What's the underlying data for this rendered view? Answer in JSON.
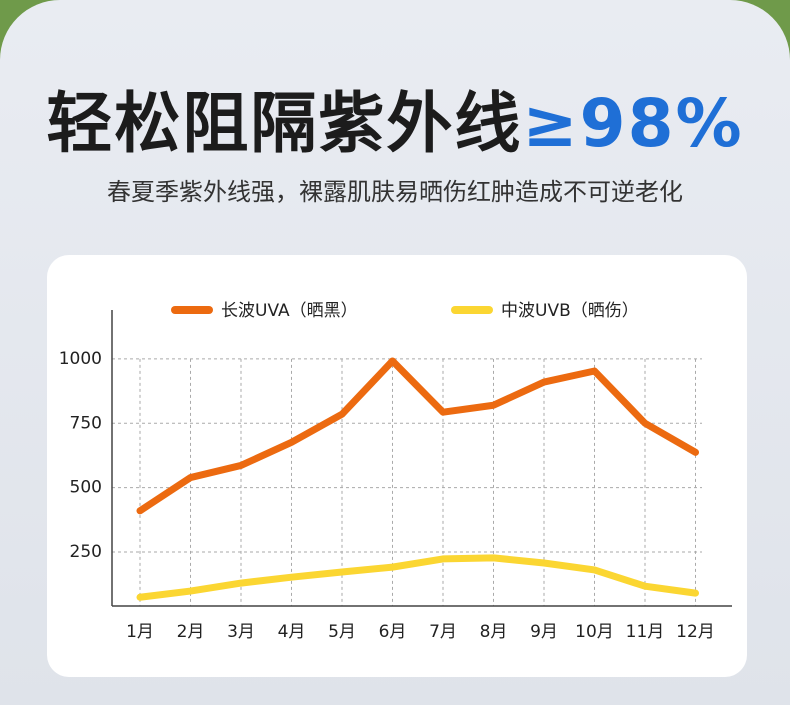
{
  "header": {
    "title": "轻松阻隔紫外线",
    "highlight": "≥98%",
    "subtitle": "春夏季紫外线强，裸露肌肤易晒伤红肿造成不可逆老化"
  },
  "chart_data": {
    "type": "line",
    "categories": [
      "1月",
      "2月",
      "3月",
      "4月",
      "5月",
      "6月",
      "7月",
      "8月",
      "9月",
      "10月",
      "11月",
      "12月"
    ],
    "series": [
      {
        "name": "长波UVA（晒黑）",
        "color": "#ec6a10",
        "values": [
          410,
          539,
          586,
          676,
          785,
          992,
          793,
          820,
          910,
          953,
          750,
          637
        ]
      },
      {
        "name": "中波UVB（晒伤）",
        "color": "#fbd632",
        "values": [
          74,
          98,
          129,
          152,
          172,
          191,
          223,
          227,
          207,
          180,
          117,
          90
        ]
      }
    ],
    "ylim": [
      40,
      1190
    ],
    "yticks": [
      250,
      500,
      750,
      1000
    ],
    "grid": true,
    "legend": "top"
  }
}
